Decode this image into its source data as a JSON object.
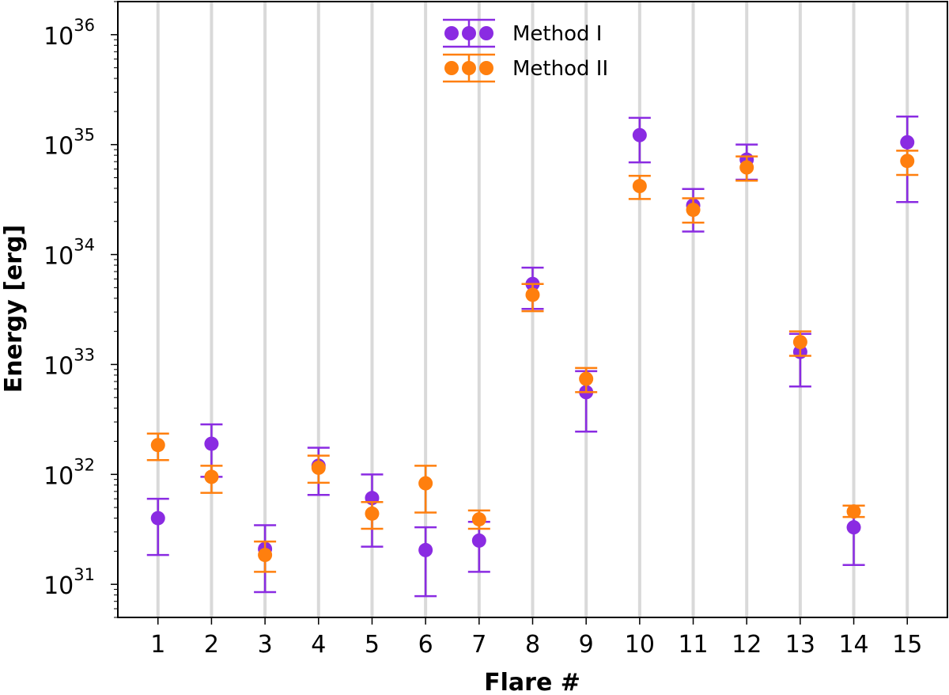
{
  "chart_data": {
    "type": "scatter",
    "xlabel": "Flare #",
    "ylabel": "Energy [erg]",
    "yscale": "log",
    "ylim": [
      5e+30,
      2e+36
    ],
    "xlim": [
      0.25,
      15.75
    ],
    "grid": "vertical",
    "legend_position": "top-center",
    "categories": [
      "1",
      "2",
      "3",
      "4",
      "5",
      "6",
      "7",
      "8",
      "9",
      "10",
      "11",
      "12",
      "13",
      "14",
      "15"
    ],
    "y_major_ticks": [
      {
        "value": 1e+31,
        "base": "10",
        "exp": "31"
      },
      {
        "value": 1e+32,
        "base": "10",
        "exp": "32"
      },
      {
        "value": 1e+33,
        "base": "10",
        "exp": "33"
      },
      {
        "value": 1e+34,
        "base": "10",
        "exp": "34"
      },
      {
        "value": 1e+35,
        "base": "10",
        "exp": "35"
      },
      {
        "value": 1e+36,
        "base": "10",
        "exp": "36"
      }
    ],
    "series": [
      {
        "name": "Method I",
        "color": "#8a2be2",
        "values": [
          4e+31,
          1.9e+32,
          2.1e+31,
          1.2e+32,
          6.1e+31,
          2.05e+31,
          2.5e+31,
          5.4e+33,
          5.6e+32,
          1.22e+35,
          2.8e+34,
          7.3e+34,
          1.3e+33,
          3.3e+31,
          1.05e+35
        ],
        "lower": [
          1.85e+31,
          9.5e+31,
          8.5e+30,
          6.5e+31,
          2.2e+31,
          7.8e+30,
          1.3e+31,
          3.2e+33,
          2.45e+32,
          6.9e+34,
          1.62e+34,
          4.8e+34,
          6.3e+32,
          1.5e+31,
          3e+34
        ],
        "upper": [
          6e+31,
          2.85e+32,
          3.45e+31,
          1.75e+32,
          1e+32,
          3.3e+31,
          3.7e+31,
          7.6e+33,
          8.7e+32,
          1.75e+35,
          3.95e+34,
          1e+35,
          1.9e+33,
          5.2e+31,
          1.8e+35
        ]
      },
      {
        "name": "Method II",
        "color": "#ff7f0e",
        "values": [
          1.85e+32,
          9.5e+31,
          1.85e+31,
          1.15e+32,
          4.4e+31,
          8.3e+31,
          3.9e+31,
          4.3e+33,
          7.4e+32,
          4.2e+34,
          2.55e+34,
          6.2e+34,
          1.6e+33,
          4.6e+31,
          7.1e+34
        ],
        "lower": [
          1.35e+32,
          6.8e+31,
          1.3e+31,
          8.4e+31,
          3.2e+31,
          4.5e+31,
          3.2e+31,
          3.05e+33,
          5.6e+32,
          3.2e+34,
          1.95e+34,
          4.7e+34,
          1.2e+33,
          4.1e+31,
          5.3e+34
        ],
        "upper": [
          2.35e+32,
          1.2e+32,
          2.45e+31,
          1.48e+32,
          5.6e+31,
          1.2e+32,
          4.7e+31,
          5.4e+33,
          9.3e+32,
          5.2e+34,
          3.25e+34,
          7.8e+34,
          2e+33,
          5.2e+31,
          8.8e+34
        ]
      }
    ]
  }
}
